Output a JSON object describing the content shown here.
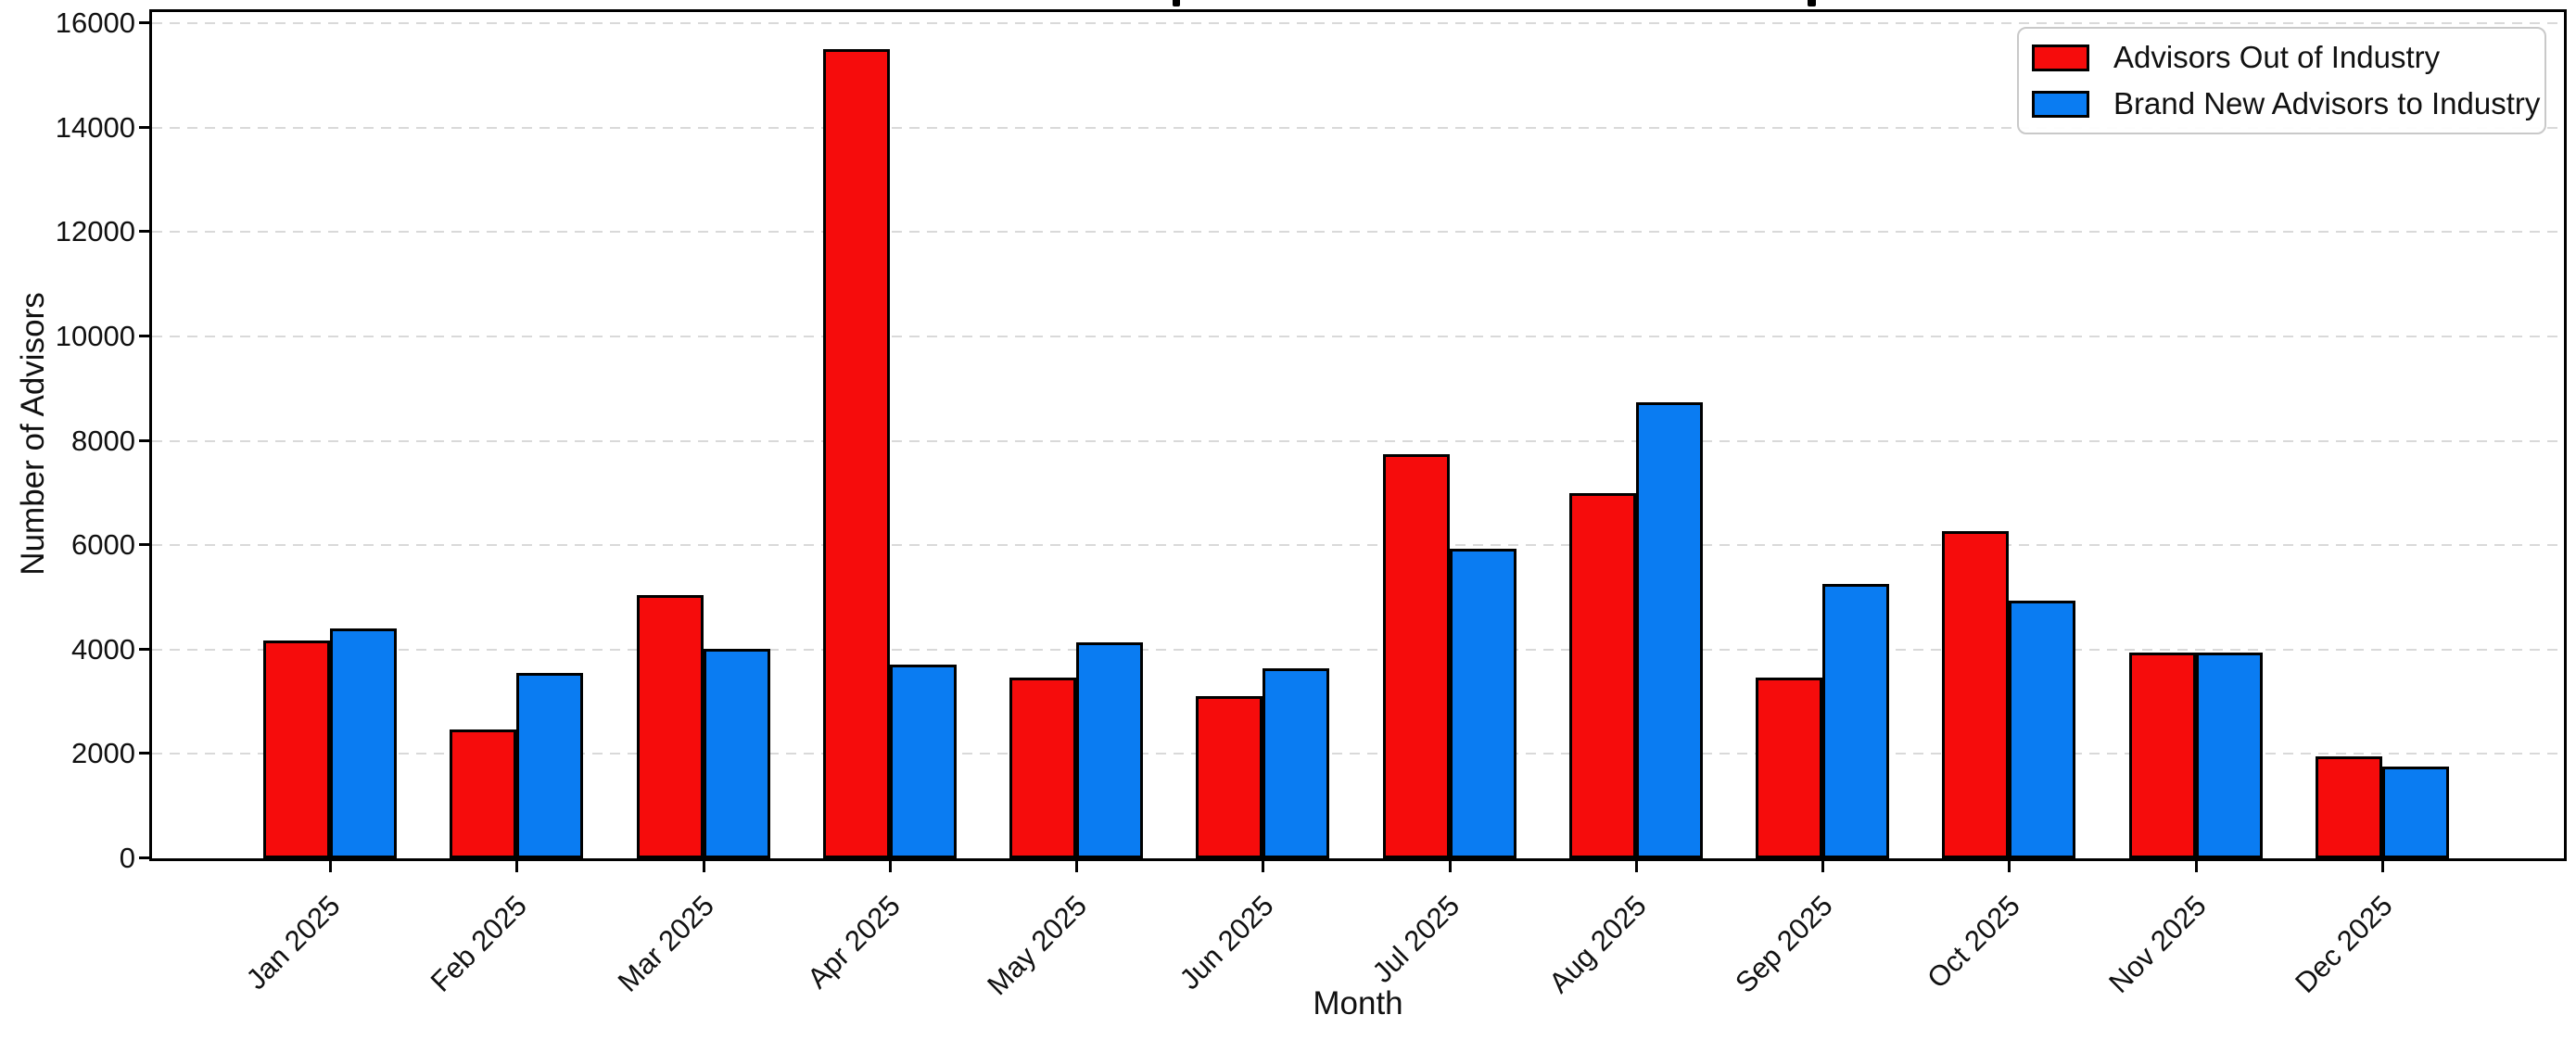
{
  "chart_data": {
    "type": "bar",
    "categories": [
      "Jan 2025",
      "Feb 2025",
      "Mar 2025",
      "Apr 2025",
      "May 2025",
      "Jun 2025",
      "Jul 2025",
      "Aug 2025",
      "Sep 2025",
      "Oct 2025",
      "Nov 2025",
      "Dec 2025"
    ],
    "series": [
      {
        "name": "Advisors Out of Industry",
        "color": "#f60c0c",
        "values": [
          4180,
          2460,
          5040,
          15500,
          3460,
          3100,
          7750,
          7000,
          3470,
          6270,
          3950,
          1950
        ]
      },
      {
        "name": "Brand New Advisors to Industry",
        "color": "#0a7cf2",
        "values": [
          4400,
          3560,
          4020,
          3710,
          4140,
          3640,
          5930,
          8730,
          5260,
          4940,
          3950,
          1760
        ]
      }
    ],
    "xlabel": "Month",
    "ylabel": "Number of Advisors",
    "ylim": [
      0,
      16000
    ],
    "ytick_step": 2000,
    "ytick_labels": [
      "0",
      "2000",
      "4000",
      "6000",
      "8000",
      "10000",
      "12000",
      "14000",
      "16000"
    ],
    "grid": "horizontal-dashed",
    "grid_color": "#d9d9d9",
    "bar_edge_color": "#000000",
    "legend_position": "upper-right",
    "title": ""
  }
}
